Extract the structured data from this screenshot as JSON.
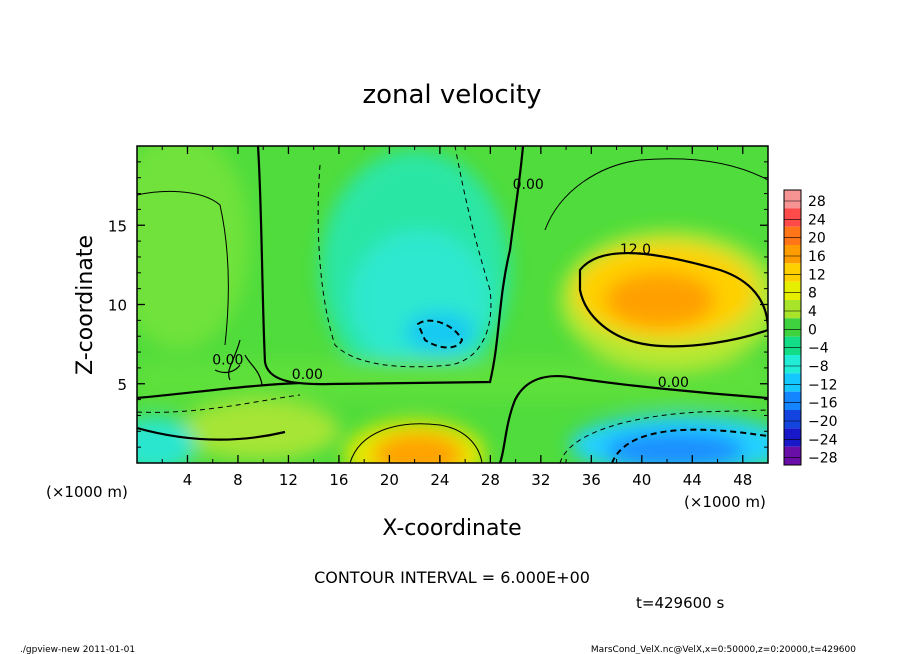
{
  "chart_data": {
    "type": "heatmap",
    "title": "zonal velocity",
    "xlabel": "X-coordinate",
    "ylabel": "Z-coordinate",
    "x_unit": "(×1000 m)",
    "y_unit": "(×1000 m)",
    "xlim": [
      0,
      50
    ],
    "ylim": [
      0,
      20
    ],
    "x_ticks": [
      "4",
      "8",
      "12",
      "16",
      "20",
      "24",
      "28",
      "32",
      "36",
      "40",
      "44",
      "48"
    ],
    "y_ticks": [
      "5",
      "10",
      "15"
    ],
    "colorbar": {
      "levels": [
        "28",
        "24",
        "20",
        "16",
        "12",
        "8",
        "4",
        "0",
        "−4",
        "−8",
        "−12",
        "−16",
        "−20",
        "−24",
        "−28"
      ],
      "colors": [
        "#f69393",
        "#ff4a4a",
        "#ff7518",
        "#ff9d00",
        "#ffd000",
        "#e7ef00",
        "#a8e52a",
        "#3fd23f",
        "#12dc86",
        "#21ecd6",
        "#14c8ff",
        "#1484ff",
        "#1444e0",
        "#1818c8",
        "#6a0ea8"
      ]
    },
    "contour_labels": [
      {
        "text": "0.00",
        "x": 31,
        "y": 17.3
      },
      {
        "text": "12.0",
        "x": 39.5,
        "y": 13.2
      },
      {
        "text": "0.00",
        "x": 42.5,
        "y": 4.8
      },
      {
        "text": "0.00",
        "x": 13.5,
        "y": 5.3
      },
      {
        "text": "0.00",
        "x": 7.2,
        "y": 6.2
      }
    ],
    "contour_interval": "CONTOUR INTERVAL = 6.000E+00",
    "time": "t=429600 s"
  },
  "footer": {
    "left": "./gpview-new   2011-01-01",
    "right": "MarsCond_VelX.nc@VelX,x=0:50000,z=0:20000,t=429600"
  }
}
